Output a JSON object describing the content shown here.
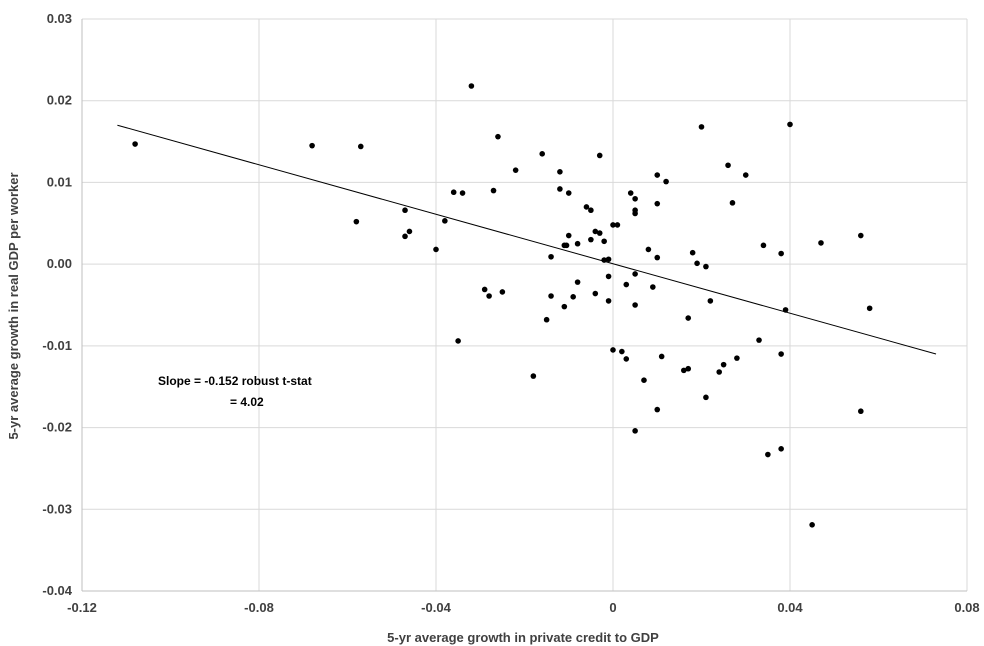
{
  "chart_data": {
    "type": "scatter",
    "title": "",
    "xlabel": "5-yr average growth in private credit to GDP",
    "ylabel": "5-yr average growth in real GDP per worker",
    "xlim": [
      -0.12,
      0.08
    ],
    "ylim": [
      -0.04,
      0.03
    ],
    "xticks": [
      -0.12,
      -0.08,
      -0.04,
      0,
      0.04,
      0.08
    ],
    "xtick_labels": [
      "-0.12",
      "-0.08",
      "-0.04",
      "0",
      "0.04",
      "0.08"
    ],
    "yticks": [
      -0.04,
      -0.03,
      -0.02,
      -0.01,
      0,
      0.01,
      0.02,
      0.03
    ],
    "ytick_labels": [
      "-0.04",
      "-0.03",
      "-0.02",
      "-0.01",
      "0.00",
      "0.01",
      "0.02",
      "0.03"
    ],
    "grid": true,
    "annotation": [
      "Slope = -0.152 robust t-stat",
      "= 4.02"
    ],
    "trendline": {
      "x": [
        -0.112,
        0.073
      ],
      "y": [
        0.017,
        -0.011
      ]
    },
    "points": [
      [
        -0.108,
        0.0147
      ],
      [
        -0.068,
        0.0145
      ],
      [
        -0.057,
        0.0144
      ],
      [
        -0.058,
        0.0052
      ],
      [
        -0.047,
        0.0066
      ],
      [
        -0.047,
        0.0034
      ],
      [
        -0.046,
        0.004
      ],
      [
        -0.04,
        0.0018
      ],
      [
        -0.038,
        0.0053
      ],
      [
        -0.036,
        0.0088
      ],
      [
        -0.035,
        -0.0094
      ],
      [
        -0.034,
        0.0087
      ],
      [
        -0.032,
        0.0218
      ],
      [
        -0.029,
        -0.0031
      ],
      [
        -0.028,
        -0.0039
      ],
      [
        -0.027,
        0.009
      ],
      [
        -0.026,
        0.0156
      ],
      [
        -0.025,
        -0.0034
      ],
      [
        -0.022,
        0.0115
      ],
      [
        -0.018,
        -0.0137
      ],
      [
        -0.016,
        0.0135
      ],
      [
        -0.015,
        -0.0068
      ],
      [
        -0.014,
        -0.0039
      ],
      [
        -0.014,
        0.0009
      ],
      [
        -0.012,
        0.0113
      ],
      [
        -0.012,
        0.0092
      ],
      [
        -0.011,
        0.0023
      ],
      [
        -0.011,
        -0.0052
      ],
      [
        -0.01,
        0.0087
      ],
      [
        -0.01,
        0.0035
      ],
      [
        -0.0105,
        0.0023
      ],
      [
        -0.009,
        -0.004
      ],
      [
        -0.008,
        -0.0022
      ],
      [
        -0.008,
        0.0025
      ],
      [
        -0.006,
        0.007
      ],
      [
        -0.005,
        0.0066
      ],
      [
        -0.005,
        0.003
      ],
      [
        -0.004,
        0.004
      ],
      [
        -0.004,
        -0.0036
      ],
      [
        -0.003,
        0.0038
      ],
      [
        -0.003,
        0.0133
      ],
      [
        -0.002,
        0.0028
      ],
      [
        -0.002,
        0.0005
      ],
      [
        -0.001,
        0.0006
      ],
      [
        -0.001,
        -0.0015
      ],
      [
        -0.001,
        -0.0045
      ],
      [
        0.0,
        0.0048
      ],
      [
        0.001,
        0.0048
      ],
      [
        0.0,
        -0.0105
      ],
      [
        0.002,
        -0.0107
      ],
      [
        0.003,
        -0.0116
      ],
      [
        0.003,
        -0.0025
      ],
      [
        0.004,
        0.0087
      ],
      [
        0.005,
        0.008
      ],
      [
        0.005,
        0.0066
      ],
      [
        0.005,
        0.0062
      ],
      [
        0.005,
        -0.0012
      ],
      [
        0.005,
        -0.005
      ],
      [
        0.005,
        -0.0204
      ],
      [
        0.007,
        -0.0142
      ],
      [
        0.008,
        0.0018
      ],
      [
        0.009,
        -0.0028
      ],
      [
        0.01,
        0.0008
      ],
      [
        0.01,
        0.0074
      ],
      [
        0.01,
        0.0109
      ],
      [
        0.01,
        -0.0178
      ],
      [
        0.011,
        -0.0113
      ],
      [
        0.012,
        0.0101
      ],
      [
        0.016,
        -0.013
      ],
      [
        0.017,
        -0.0066
      ],
      [
        0.017,
        -0.0128
      ],
      [
        0.018,
        0.0014
      ],
      [
        0.019,
        0.0001
      ],
      [
        0.02,
        0.0168
      ],
      [
        0.021,
        -0.0003
      ],
      [
        0.021,
        -0.0163
      ],
      [
        0.022,
        -0.0045
      ],
      [
        0.024,
        -0.0132
      ],
      [
        0.025,
        -0.0123
      ],
      [
        0.026,
        0.0121
      ],
      [
        0.027,
        0.0075
      ],
      [
        0.028,
        -0.0115
      ],
      [
        0.03,
        0.0109
      ],
      [
        0.033,
        -0.0093
      ],
      [
        0.034,
        0.0023
      ],
      [
        0.035,
        -0.0233
      ],
      [
        0.038,
        0.0013
      ],
      [
        0.038,
        -0.011
      ],
      [
        0.038,
        -0.0226
      ],
      [
        0.039,
        -0.0056
      ],
      [
        0.04,
        0.0171
      ],
      [
        0.045,
        -0.0319
      ],
      [
        0.047,
        0.0026
      ],
      [
        0.056,
        0.0035
      ],
      [
        0.056,
        -0.018
      ],
      [
        0.058,
        -0.0054
      ]
    ]
  }
}
